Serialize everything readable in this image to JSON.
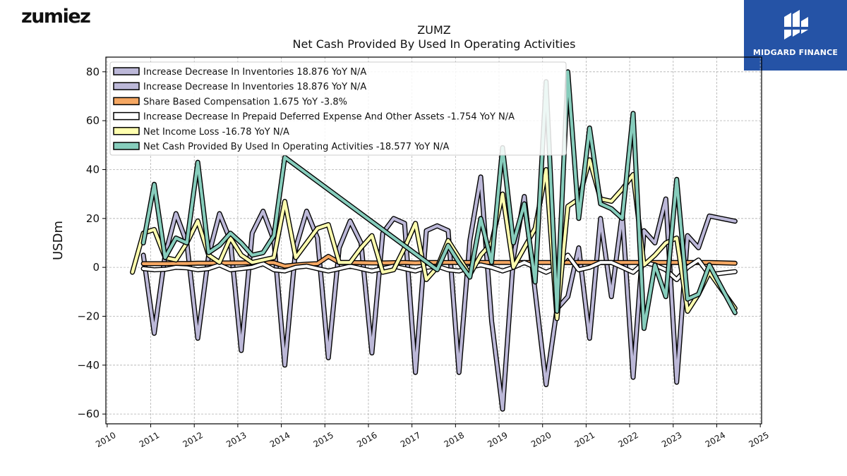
{
  "branding": {
    "left_logo": "zumiez",
    "right_logo": "MIDGARD FINANCE"
  },
  "chart_data": {
    "type": "line",
    "title": "ZUMZ",
    "subtitle": "Net Cash Provided By Used In Operating Activities",
    "ylabel": "USDm",
    "xlabel": "",
    "ylim": [
      -64,
      86
    ],
    "xlim": [
      2009.97,
      2025.03
    ],
    "y_ticks": [
      -60,
      -40,
      -20,
      0,
      20,
      40,
      60,
      80
    ],
    "x_ticks": [
      2010,
      2011,
      2012,
      2013,
      2014,
      2015,
      2016,
      2017,
      2018,
      2019,
      2020,
      2021,
      2022,
      2023,
      2024,
      2025
    ],
    "grid": true,
    "legend_position": "top-left",
    "series": [
      {
        "name": "Increase Decrease In Inventories",
        "legend_label": "Increase Decrease In Inventories  18.876 YoY N/A",
        "color": "#bcb8d8",
        "points": [
          [
            2010.83,
            5
          ],
          [
            2011.08,
            -27
          ],
          [
            2011.33,
            5
          ],
          [
            2011.58,
            22
          ],
          [
            2011.83,
            10
          ],
          [
            2012.08,
            -29
          ],
          [
            2012.33,
            5
          ],
          [
            2012.58,
            22
          ],
          [
            2012.83,
            11
          ],
          [
            2013.08,
            -34
          ],
          [
            2013.33,
            14
          ],
          [
            2013.58,
            23
          ],
          [
            2013.83,
            11
          ],
          [
            2014.08,
            -40
          ],
          [
            2014.33,
            8
          ],
          [
            2014.58,
            23
          ],
          [
            2014.83,
            12
          ],
          [
            2015.08,
            -37
          ],
          [
            2015.33,
            8
          ],
          [
            2015.58,
            19
          ],
          [
            2015.83,
            10
          ],
          [
            2016.08,
            -35
          ],
          [
            2016.33,
            14
          ],
          [
            2016.58,
            20
          ],
          [
            2016.83,
            18
          ],
          [
            2017.08,
            -43
          ],
          [
            2017.33,
            15
          ],
          [
            2017.58,
            17
          ],
          [
            2017.83,
            15
          ],
          [
            2018.08,
            -43
          ],
          [
            2018.33,
            11
          ],
          [
            2018.58,
            37
          ],
          [
            2018.83,
            -22
          ],
          [
            2019.08,
            -58
          ],
          [
            2019.33,
            4
          ],
          [
            2019.58,
            29
          ],
          [
            2019.83,
            -10
          ],
          [
            2020.08,
            -48
          ],
          [
            2020.33,
            -17
          ],
          [
            2020.58,
            -12
          ],
          [
            2020.83,
            8
          ],
          [
            2021.08,
            -29
          ],
          [
            2021.33,
            20
          ],
          [
            2021.58,
            -12
          ],
          [
            2021.83,
            22
          ],
          [
            2022.08,
            -45
          ],
          [
            2022.33,
            15
          ],
          [
            2022.58,
            10
          ],
          [
            2022.83,
            28
          ],
          [
            2023.08,
            -47
          ],
          [
            2023.33,
            13
          ],
          [
            2023.58,
            8
          ],
          [
            2023.83,
            21
          ],
          [
            2024.42,
            18.876
          ]
        ]
      },
      {
        "name": "Share Based Compensation",
        "legend_label": "Share Based Compensation  1.675 YoY -3.8%",
        "color": "#f5a762",
        "points": [
          [
            2010.83,
            1.5
          ],
          [
            2011.08,
            1.5
          ],
          [
            2011.33,
            1.5
          ],
          [
            2011.58,
            1.6
          ],
          [
            2011.83,
            1.6
          ],
          [
            2012.08,
            1.7
          ],
          [
            2012.33,
            1.7
          ],
          [
            2012.58,
            1.8
          ],
          [
            2012.83,
            1.8
          ],
          [
            2013.08,
            1.8
          ],
          [
            2013.33,
            1.9
          ],
          [
            2013.58,
            2
          ],
          [
            2013.83,
            1.9
          ],
          [
            2014.08,
            0.5
          ],
          [
            2014.33,
            1
          ],
          [
            2014.58,
            1.3
          ],
          [
            2014.83,
            1.5
          ],
          [
            2015.08,
            4.5
          ],
          [
            2015.33,
            2
          ],
          [
            2015.58,
            2
          ],
          [
            2015.83,
            1.9
          ],
          [
            2016.08,
            1.8
          ],
          [
            2016.33,
            1.8
          ],
          [
            2016.58,
            1.9
          ],
          [
            2016.83,
            2
          ],
          [
            2017.08,
            1.8
          ],
          [
            2017.33,
            2
          ],
          [
            2017.58,
            2
          ],
          [
            2017.83,
            2
          ],
          [
            2018.08,
            2
          ],
          [
            2018.33,
            2
          ],
          [
            2018.58,
            2
          ],
          [
            2018.83,
            2
          ],
          [
            2019.08,
            2
          ],
          [
            2019.33,
            2
          ],
          [
            2019.58,
            2
          ],
          [
            2019.83,
            2
          ],
          [
            2020.08,
            2
          ],
          [
            2020.33,
            2
          ],
          [
            2020.58,
            2
          ],
          [
            2020.83,
            2
          ],
          [
            2021.08,
            2
          ],
          [
            2021.33,
            2
          ],
          [
            2021.58,
            2
          ],
          [
            2021.83,
            2
          ],
          [
            2022.08,
            2
          ],
          [
            2022.33,
            2
          ],
          [
            2022.58,
            2
          ],
          [
            2022.83,
            2
          ],
          [
            2023.08,
            2
          ],
          [
            2023.33,
            2
          ],
          [
            2023.58,
            2
          ],
          [
            2023.83,
            2
          ],
          [
            2024.42,
            1.675
          ]
        ]
      },
      {
        "name": "Increase Decrease In Prepaid Deferred Expense And Other Assets",
        "legend_label": "Increase Decrease In Prepaid Deferred Expense And Other Assets  -1.754 YoY N/A",
        "color": "#ffffff",
        "points": [
          [
            2010.83,
            -0.5
          ],
          [
            2011.08,
            -1
          ],
          [
            2011.33,
            -0.8
          ],
          [
            2011.58,
            0
          ],
          [
            2011.83,
            -0.2
          ],
          [
            2012.08,
            -1
          ],
          [
            2012.33,
            -0.5
          ],
          [
            2012.58,
            1
          ],
          [
            2012.83,
            -1
          ],
          [
            2013.08,
            -0.5
          ],
          [
            2013.33,
            0
          ],
          [
            2013.58,
            1.5
          ],
          [
            2013.83,
            -1
          ],
          [
            2014.08,
            -1.5
          ],
          [
            2014.33,
            0
          ],
          [
            2014.58,
            0.5
          ],
          [
            2014.83,
            -0.5
          ],
          [
            2015.08,
            -1.5
          ],
          [
            2015.33,
            -0.5
          ],
          [
            2015.58,
            0.5
          ],
          [
            2015.83,
            -0.5
          ],
          [
            2016.08,
            -1.5
          ],
          [
            2016.33,
            -0.5
          ],
          [
            2016.58,
            0.5
          ],
          [
            2016.83,
            -0.5
          ],
          [
            2017.08,
            -1.5
          ],
          [
            2017.33,
            0
          ],
          [
            2017.58,
            0.5
          ],
          [
            2017.83,
            -1
          ],
          [
            2018.08,
            -1.5
          ],
          [
            2018.33,
            0
          ],
          [
            2018.58,
            1
          ],
          [
            2018.83,
            0
          ],
          [
            2019.08,
            -1.5
          ],
          [
            2019.33,
            0
          ],
          [
            2019.58,
            2
          ],
          [
            2019.83,
            0
          ],
          [
            2020.08,
            -2
          ],
          [
            2020.33,
            0
          ],
          [
            2020.58,
            5
          ],
          [
            2020.83,
            -1
          ],
          [
            2021.08,
            0
          ],
          [
            2021.33,
            2
          ],
          [
            2021.58,
            2
          ],
          [
            2021.83,
            0
          ],
          [
            2022.08,
            -2
          ],
          [
            2022.33,
            2
          ],
          [
            2022.58,
            1
          ],
          [
            2022.83,
            -1
          ],
          [
            2023.08,
            -5
          ],
          [
            2023.33,
            0
          ],
          [
            2023.58,
            3
          ],
          [
            2023.83,
            -3
          ],
          [
            2024.42,
            -1.754
          ]
        ]
      },
      {
        "name": "Net Income Loss",
        "legend_label": "Net Income Loss  -16.78 YoY N/A",
        "color": "#ffffaf",
        "points": [
          [
            2010.58,
            -2
          ],
          [
            2010.83,
            14
          ],
          [
            2011.08,
            15.5
          ],
          [
            2011.33,
            4
          ],
          [
            2011.58,
            3
          ],
          [
            2011.83,
            10
          ],
          [
            2012.08,
            19
          ],
          [
            2012.33,
            5
          ],
          [
            2012.58,
            2
          ],
          [
            2012.83,
            12
          ],
          [
            2013.08,
            5
          ],
          [
            2013.33,
            2
          ],
          [
            2013.58,
            3
          ],
          [
            2013.83,
            4
          ],
          [
            2014.08,
            27
          ],
          [
            2014.33,
            4
          ],
          [
            2014.58,
            10
          ],
          [
            2014.83,
            16
          ],
          [
            2015.08,
            17.5
          ],
          [
            2015.33,
            2
          ],
          [
            2015.58,
            2
          ],
          [
            2015.83,
            8
          ],
          [
            2016.08,
            13
          ],
          [
            2016.33,
            -2
          ],
          [
            2016.58,
            -1
          ],
          [
            2016.83,
            8
          ],
          [
            2017.08,
            18
          ],
          [
            2017.33,
            -5
          ],
          [
            2017.58,
            0
          ],
          [
            2017.83,
            11
          ],
          [
            2018.08,
            4
          ],
          [
            2018.33,
            -3
          ],
          [
            2018.58,
            5
          ],
          [
            2018.83,
            10
          ],
          [
            2019.08,
            30
          ],
          [
            2019.33,
            0
          ],
          [
            2019.58,
            8
          ],
          [
            2019.83,
            16
          ],
          [
            2020.08,
            40
          ],
          [
            2020.33,
            -21
          ],
          [
            2020.58,
            25
          ],
          [
            2020.83,
            28
          ],
          [
            2021.08,
            44
          ],
          [
            2021.33,
            28
          ],
          [
            2021.58,
            27
          ],
          [
            2021.83,
            32
          ],
          [
            2022.08,
            38
          ],
          [
            2022.33,
            1
          ],
          [
            2022.58,
            5
          ],
          [
            2022.83,
            10
          ],
          [
            2023.08,
            12
          ],
          [
            2023.33,
            -18
          ],
          [
            2023.58,
            -11
          ],
          [
            2023.83,
            -2
          ],
          [
            2024.42,
            -16.78
          ]
        ]
      },
      {
        "name": "Net Cash Provided By Used In Operating Activities",
        "legend_label": "Net Cash Provided By Used In Operating Activities  -18.577 YoY N/A",
        "color": "#86cdbc",
        "points": [
          [
            2010.83,
            10
          ],
          [
            2011.08,
            34
          ],
          [
            2011.33,
            4
          ],
          [
            2011.58,
            12
          ],
          [
            2011.83,
            10
          ],
          [
            2012.08,
            43
          ],
          [
            2012.33,
            6
          ],
          [
            2012.58,
            9
          ],
          [
            2012.83,
            14
          ],
          [
            2013.08,
            10
          ],
          [
            2013.33,
            5
          ],
          [
            2013.58,
            6
          ],
          [
            2013.83,
            13
          ],
          [
            2014.08,
            45
          ],
          [
            2017.58,
            -1
          ],
          [
            2017.83,
            9
          ],
          [
            2018.08,
            2
          ],
          [
            2018.33,
            -4
          ],
          [
            2018.58,
            20
          ],
          [
            2018.83,
            2
          ],
          [
            2019.08,
            49
          ],
          [
            2019.33,
            10
          ],
          [
            2019.58,
            26
          ],
          [
            2019.83,
            -6
          ],
          [
            2020.08,
            76
          ],
          [
            2020.33,
            -18
          ],
          [
            2020.58,
            80
          ],
          [
            2020.83,
            20
          ],
          [
            2021.08,
            57
          ],
          [
            2021.33,
            26
          ],
          [
            2021.58,
            24
          ],
          [
            2021.83,
            20
          ],
          [
            2022.08,
            63
          ],
          [
            2022.33,
            -25
          ],
          [
            2022.58,
            1
          ],
          [
            2022.83,
            -12
          ],
          [
            2023.08,
            36
          ],
          [
            2023.33,
            -13
          ],
          [
            2023.58,
            -11
          ],
          [
            2023.83,
            1
          ],
          [
            2024.42,
            -18.577
          ]
        ]
      }
    ]
  }
}
